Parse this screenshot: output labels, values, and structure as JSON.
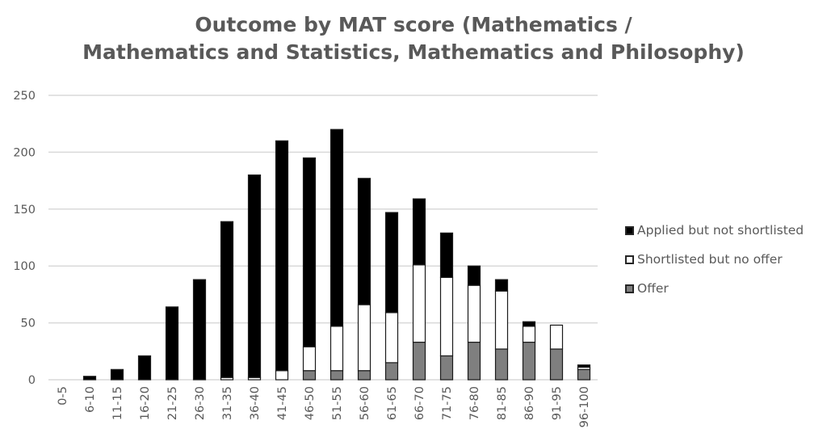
{
  "chart_data": {
    "type": "bar",
    "stacked": true,
    "title": "Outcome by MAT score (Mathematics / Mathematics and Statistics, Mathematics and Philosophy)",
    "title_lines": [
      "Outcome by MAT score (Mathematics /",
      "Mathematics and Statistics, Mathematics and Philosophy)"
    ],
    "xlabel": "",
    "ylabel": "",
    "ylim": [
      0,
      250
    ],
    "yticks": [
      0,
      50,
      100,
      150,
      200,
      250
    ],
    "grid": true,
    "legend_position": "right",
    "categories": [
      "0-5",
      "6-10",
      "11-15",
      "16-20",
      "21-25",
      "26-30",
      "31-35",
      "36-40",
      "41-45",
      "46-50",
      "51-55",
      "56-60",
      "61-65",
      "66-70",
      "71-75",
      "76-80",
      "81-85",
      "86-90",
      "91-95",
      "96-100"
    ],
    "series": [
      {
        "name": "Offer",
        "color": "#7f7f7f",
        "values": [
          0,
          0,
          0,
          0,
          0,
          0,
          0,
          0,
          0,
          8,
          8,
          8,
          15,
          33,
          21,
          33,
          27,
          33,
          27,
          9
        ]
      },
      {
        "name": "Shortlisted but no offer",
        "color": "#ffffff",
        "values": [
          0,
          0,
          0,
          0,
          0,
          0,
          2,
          2,
          8,
          21,
          39,
          58,
          44,
          68,
          69,
          50,
          51,
          14,
          21,
          2
        ]
      },
      {
        "name": "Applied but not shortlisted",
        "color": "#000000",
        "values": [
          0,
          3,
          9,
          21,
          64,
          88,
          137,
          178,
          202,
          166,
          173,
          111,
          88,
          58,
          39,
          17,
          10,
          4,
          0,
          2
        ]
      }
    ],
    "legend_order": [
      "Applied but not shortlisted",
      "Shortlisted but no offer",
      "Offer"
    ]
  }
}
